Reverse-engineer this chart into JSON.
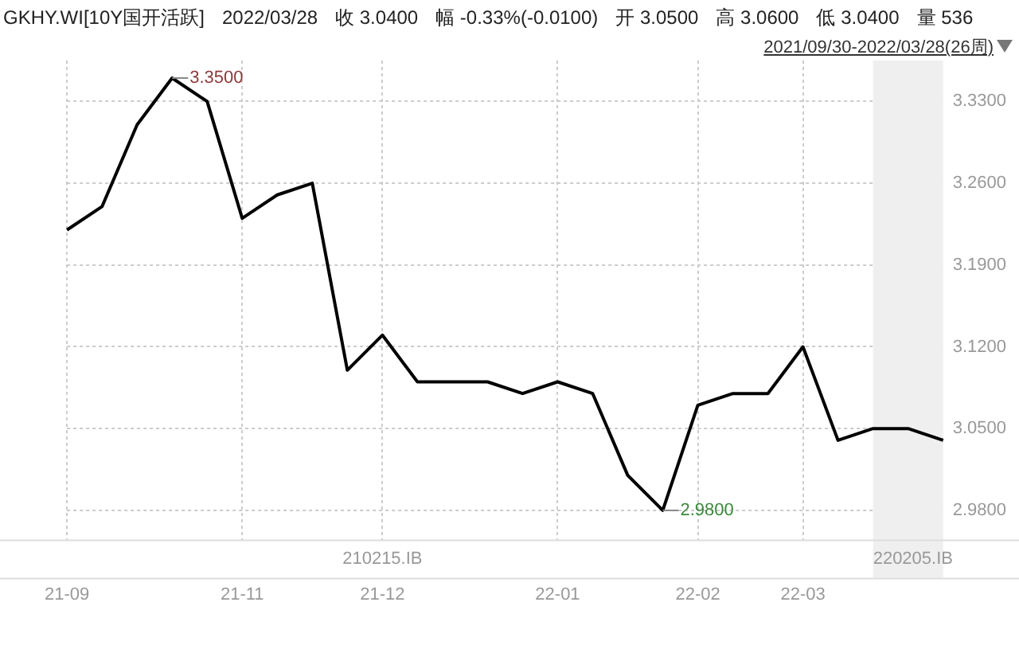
{
  "chart_data": {
    "type": "line",
    "title": "GKHY.WI[10Y国开活跃]",
    "subtitle": "2021/09/30-2022/03/28(26周)",
    "categories": [
      "21-09",
      null,
      null,
      null,
      null,
      "21-11",
      null,
      null,
      null,
      "21-12",
      null,
      null,
      null,
      null,
      "22-01",
      null,
      null,
      null,
      "22-02",
      null,
      null,
      "22-03",
      null,
      null,
      null,
      null
    ],
    "series": [
      {
        "color": "#000000",
        "values": [
          3.22,
          3.24,
          3.31,
          3.35,
          3.33,
          3.23,
          3.25,
          3.26,
          3.1,
          3.13,
          3.09,
          3.09,
          3.09,
          3.08,
          3.09,
          3.08,
          3.01,
          2.98,
          3.07,
          3.08,
          3.08,
          3.12,
          3.04,
          3.05,
          3.05,
          3.04
        ]
      }
    ],
    "ylim": [
      2.955,
      3.365
    ],
    "yticks": [
      {
        "value": 2.98,
        "label": "2.9800"
      },
      {
        "value": 3.05,
        "label": "3.0500"
      },
      {
        "value": 3.12,
        "label": "3.1200"
      },
      {
        "value": 3.19,
        "label": "3.1900"
      },
      {
        "value": 3.26,
        "label": "3.2600"
      },
      {
        "value": 3.33,
        "label": "3.3300"
      }
    ],
    "grid": true,
    "legend": false,
    "marker": "none",
    "line_style": "solid",
    "annotations": [
      "2022/03/28",
      "收 3.0400",
      "幅 -0.33%(-0.0100)",
      "开 3.0500",
      "高 3.0600",
      "低 3.0400",
      "量 536",
      "3.3500",
      "2.9800",
      "210215.IB",
      "220205.IB"
    ]
  }
}
